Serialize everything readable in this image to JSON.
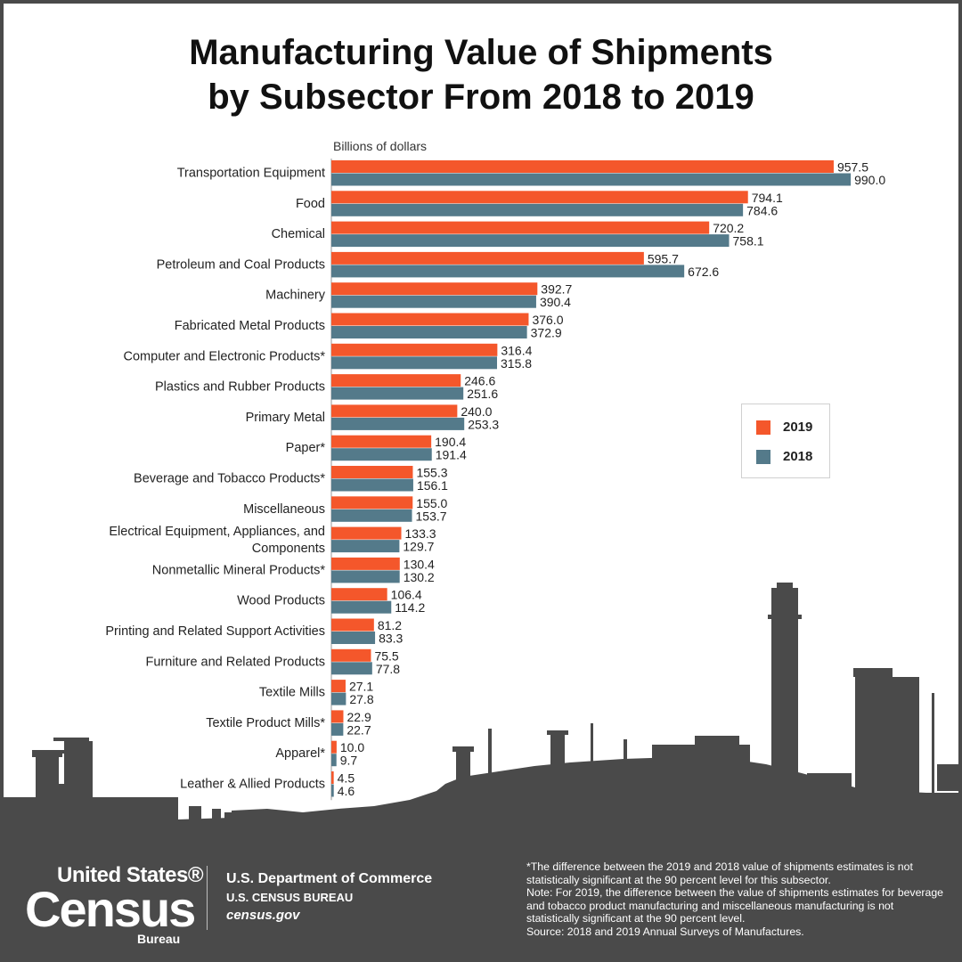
{
  "title_lines": [
    "Manufacturing Value of Shipments",
    "by Subsector From 2018 to 2019"
  ],
  "colors": {
    "series_2019": "#f4572b",
    "series_2018": "#547a8a",
    "background": "#4a4a4a",
    "skyline": "#4a4a4a"
  },
  "legend": {
    "label_2019": "2019",
    "label_2018": "2018"
  },
  "chart_data": {
    "type": "bar",
    "orientation": "horizontal",
    "unit_label": "Billions of dollars",
    "categories": [
      "Transportation Equipment",
      "Food",
      "Chemical",
      "Petroleum and Coal Products",
      "Machinery",
      "Fabricated Metal Products",
      "Computer and Electronic Products*",
      "Plastics and Rubber Products",
      "Primary Metal",
      "Paper*",
      "Beverage and Tobacco Products*",
      "Miscellaneous",
      "Electrical Equipment, Appliances, and Components",
      "Nonmetallic Mineral Products*",
      "Wood Products",
      "Printing and Related Support Activities",
      "Furniture and Related Products",
      "Textile Mills",
      "Textile Product Mills*",
      "Apparel*",
      "Leather & Allied Products"
    ],
    "series": [
      {
        "name": "2019",
        "values": [
          957.5,
          794.1,
          720.2,
          595.7,
          392.7,
          376.0,
          316.4,
          246.6,
          240.0,
          190.4,
          155.3,
          155.0,
          133.3,
          130.4,
          106.4,
          81.2,
          75.5,
          27.1,
          22.9,
          10.0,
          4.5
        ],
        "labels": [
          "957.5",
          "794.1",
          "720.2",
          "595.7",
          "392.7",
          "376.0",
          "316.4",
          "246.6",
          "240.0",
          "190.4",
          "155.3",
          "155.0",
          "133.3",
          "130.4",
          "106.4",
          "81.2",
          "75.5",
          "27.1",
          "22.9",
          "10.0",
          "4.5"
        ]
      },
      {
        "name": "2018",
        "values": [
          990.0,
          784.6,
          758.1,
          672.6,
          390.4,
          372.9,
          315.8,
          251.6,
          253.3,
          191.4,
          156.1,
          153.7,
          129.7,
          130.2,
          114.2,
          83.3,
          77.8,
          27.8,
          22.7,
          9.7,
          4.6
        ],
        "labels": [
          "990.0",
          "784.6",
          "758.1",
          "672.6",
          "390.4",
          "372.9",
          "315.8",
          "251.6",
          "253.3",
          "191.4",
          "156.1",
          "153.7",
          "129.7",
          "130.2",
          "114.2",
          "83.3",
          "77.8",
          "27.8",
          "22.7",
          "9.7",
          "4.6"
        ]
      }
    ],
    "xlim": [
      0,
      1000
    ],
    "grid": false,
    "legend_position": "right-middle"
  },
  "footer": {
    "logo_line1": "United States®",
    "logo_line2": "Census",
    "logo_line3": "Bureau",
    "dept_line1": "U.S. Department of Commerce",
    "dept_line2": "U.S. CENSUS BUREAU",
    "dept_line3": "census.gov",
    "note1": "*The difference between the 2019 and 2018 value of shipments estimates is not statistically significant at the 90 percent level for this subsector.",
    "note2": "Note: For 2019, the difference between the value of shipments estimates for beverage and tobacco product manufacturing and miscellaneous manufacturing is not statistically significant at the 90 percent level.",
    "note3": "Source: 2018 and 2019 Annual Surveys of Manufactures."
  }
}
